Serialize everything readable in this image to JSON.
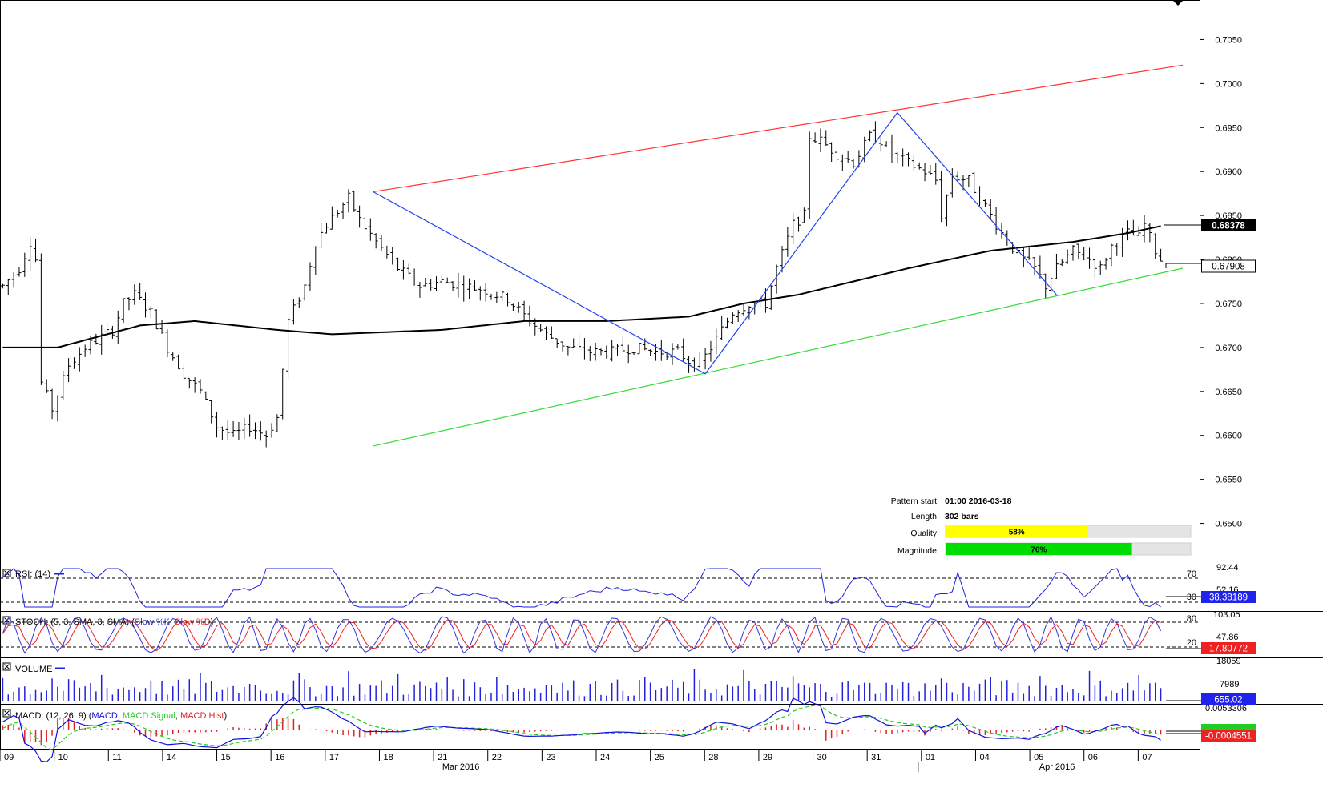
{
  "colors": {
    "resistance": "#ff3333",
    "support": "#33dd33",
    "pattern": "#2244ee",
    "ma": "#000000",
    "rsi": "#2222dd",
    "stoch_k": "#3333dd",
    "stoch_d": "#ee2222",
    "volume": "#2222dd",
    "macd": "#1111dd",
    "macd_signal": "#22cc22",
    "macd_hist": "#dd2222",
    "quality_bar": "#ffff00",
    "magnitude_bar": "#00dd00",
    "bar_bg": "#e4e4e4"
  },
  "chart_data": {
    "type": "candlestick",
    "price_axis": {
      "ticks": [
        "0.7050",
        "0.7000",
        "0.6950",
        "0.6900",
        "0.6850",
        "0.6800",
        "0.6750",
        "0.6700",
        "0.6650",
        "0.6600",
        "0.6550",
        "0.6500"
      ],
      "ylim": [
        0.6455,
        0.7095
      ]
    },
    "current_price": "0.68378",
    "ma_label": "0.67908",
    "dates": [
      "09",
      "10",
      "11",
      "14",
      "15",
      "16",
      "17",
      "18",
      "21",
      "22",
      "23",
      "24",
      "25",
      "28",
      "29",
      "30",
      "31",
      "01",
      "04",
      "05",
      "06",
      "07"
    ],
    "month_labels": [
      {
        "label": "Mar 2016",
        "at_day": "21"
      },
      {
        "label": "Apr 2016",
        "at_day": "05"
      }
    ],
    "ohlc_points": [
      [
        0,
        0.677
      ],
      [
        3,
        0.679
      ],
      [
        5,
        0.682
      ],
      [
        6,
        0.68
      ],
      [
        7,
        0.666
      ],
      [
        9,
        0.663
      ],
      [
        12,
        0.668
      ],
      [
        15,
        0.67
      ],
      [
        20,
        0.672
      ],
      [
        22,
        0.675
      ],
      [
        24,
        0.676
      ],
      [
        27,
        0.674
      ],
      [
        30,
        0.67
      ],
      [
        33,
        0.667
      ],
      [
        36,
        0.665
      ],
      [
        39,
        0.661
      ],
      [
        42,
        0.66
      ],
      [
        45,
        0.661
      ],
      [
        48,
        0.66
      ],
      [
        50,
        0.662
      ],
      [
        52,
        0.673
      ],
      [
        55,
        0.677
      ],
      [
        57,
        0.682
      ],
      [
        59,
        0.684
      ],
      [
        61,
        0.6855
      ],
      [
        63,
        0.687
      ],
      [
        65,
        0.6845
      ],
      [
        68,
        0.682
      ],
      [
        72,
        0.679
      ],
      [
        76,
        0.677
      ],
      [
        80,
        0.6775
      ],
      [
        84,
        0.677
      ],
      [
        88,
        0.6765
      ],
      [
        92,
        0.6755
      ],
      [
        96,
        0.673
      ],
      [
        99,
        0.6715
      ],
      [
        103,
        0.67
      ],
      [
        107,
        0.6695
      ],
      [
        111,
        0.6695
      ],
      [
        115,
        0.67
      ],
      [
        119,
        0.6695
      ],
      [
        123,
        0.6695
      ],
      [
        125,
        0.6685
      ],
      [
        127,
        0.668
      ],
      [
        130,
        0.671
      ],
      [
        133,
        0.674
      ],
      [
        136,
        0.675
      ],
      [
        139,
        0.675
      ],
      [
        141,
        0.679
      ],
      [
        144,
        0.684
      ],
      [
        146,
        0.685
      ],
      [
        147,
        0.694
      ],
      [
        149,
        0.6935
      ],
      [
        152,
        0.692
      ],
      [
        155,
        0.691
      ],
      [
        158,
        0.694
      ],
      [
        160,
        0.6935
      ],
      [
        162,
        0.692
      ],
      [
        165,
        0.691
      ],
      [
        168,
        0.69
      ],
      [
        170,
        0.689
      ],
      [
        171,
        0.685
      ],
      [
        173,
        0.6895
      ],
      [
        176,
        0.689
      ],
      [
        179,
        0.686
      ],
      [
        182,
        0.683
      ],
      [
        185,
        0.6805
      ],
      [
        188,
        0.679
      ],
      [
        190,
        0.677
      ],
      [
        192,
        0.679
      ],
      [
        195,
        0.681
      ],
      [
        198,
        0.68
      ],
      [
        200,
        0.679
      ],
      [
        202,
        0.6815
      ],
      [
        205,
        0.683
      ],
      [
        207,
        0.6825
      ],
      [
        208,
        0.684
      ],
      [
        210,
        0.681
      ],
      [
        211,
        0.68
      ]
    ],
    "ma_points": [
      [
        0,
        0.67
      ],
      [
        10,
        0.67
      ],
      [
        25,
        0.6725
      ],
      [
        35,
        0.673
      ],
      [
        50,
        0.672
      ],
      [
        60,
        0.6715
      ],
      [
        80,
        0.672
      ],
      [
        95,
        0.673
      ],
      [
        110,
        0.673
      ],
      [
        125,
        0.6735
      ],
      [
        135,
        0.675
      ],
      [
        145,
        0.676
      ],
      [
        155,
        0.6775
      ],
      [
        165,
        0.679
      ],
      [
        180,
        0.681
      ],
      [
        195,
        0.682
      ],
      [
        205,
        0.683
      ],
      [
        211,
        0.6838
      ]
    ],
    "channel": {
      "resistance": [
        [
          67.5,
          0.6877
        ],
        [
          163,
          0.6967
        ],
        [
          215,
          0.7021
        ]
      ],
      "support": [
        [
          67.5,
          0.6588
        ],
        [
          128,
          0.667
        ],
        [
          215,
          0.679
        ]
      ]
    },
    "pattern_lines": [
      [
        67.5,
        0.6877
      ],
      [
        128,
        0.667
      ],
      [
        163,
        0.6967
      ],
      [
        192,
        0.676
      ]
    ],
    "indicators": [
      {
        "title": "RSI: (14)",
        "axis": [
          "92.44",
          "70",
          "52.16",
          "30"
        ],
        "value": "38.38189"
      },
      {
        "title": "STOCH: (5, 3, SMA, 3, SMA)",
        "legend": [
          "Slow %K",
          "Slow %D"
        ],
        "axis": [
          "103.05",
          "80",
          "47.86",
          "20"
        ],
        "value": "17.80772"
      },
      {
        "title": "VOLUME",
        "axis": [
          "18059",
          "7989"
        ],
        "value": "655.02"
      },
      {
        "title": "MACD: (12, 26, 9)",
        "legend": [
          "MACD",
          "MACD Signal",
          "MACD Hist"
        ],
        "axis": [
          "0.0053306"
        ],
        "value": "-0.0004551"
      }
    ]
  },
  "pattern_info": {
    "start_label": "Pattern start",
    "start_value": "01:00 2016-03-18",
    "length_label": "Length",
    "length_value": "302 bars",
    "quality_label": "Quality",
    "quality_value": "58%",
    "quality_fraction": 0.58,
    "magnitude_label": "Magnitude",
    "magnitude_value": "76%",
    "magnitude_fraction": 0.76
  }
}
